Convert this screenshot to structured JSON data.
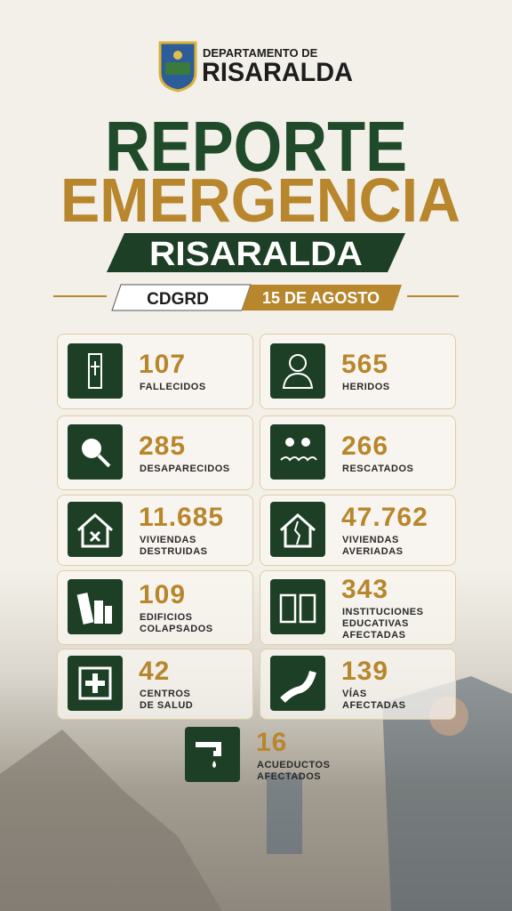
{
  "header": {
    "org_line1": "DEPARTAMENTO DE",
    "org_line2": "RISARALDA"
  },
  "title": {
    "line1": "REPORTE",
    "line2": "EMERGENCIA",
    "banner": "RISARALDA"
  },
  "subtitle": {
    "agency": "CDGRD",
    "date": "15 DE AGOSTO"
  },
  "stats": [
    {
      "value": "107",
      "label": [
        "FALLECIDOS"
      ]
    },
    {
      "value": "565",
      "label": [
        "HERIDOS"
      ]
    },
    {
      "value": "285",
      "label": [
        "DESAPARECIDOS"
      ]
    },
    {
      "value": "266",
      "label": [
        "RESCATADOS"
      ]
    },
    {
      "value": "11.685",
      "label": [
        "VIVIENDAS",
        "DESTRUIDAS"
      ]
    },
    {
      "value": "47.762",
      "label": [
        "VIVIENDAS",
        "AVERIADAS"
      ]
    },
    {
      "value": "109",
      "label": [
        "EDIFICIOS",
        "COLAPSADOS"
      ]
    },
    {
      "value": "343",
      "label": [
        "INSTITUCIONES",
        "EDUCATIVAS",
        "AFECTADAS"
      ]
    },
    {
      "value": "42",
      "label": [
        "CENTROS",
        "DE SALUD"
      ]
    },
    {
      "value": "139",
      "label": [
        "VÍAS",
        "AFECTADAS"
      ]
    },
    {
      "value": "16",
      "label": [
        "ACUEDUCTOS",
        "AFECTADOS"
      ]
    }
  ]
}
